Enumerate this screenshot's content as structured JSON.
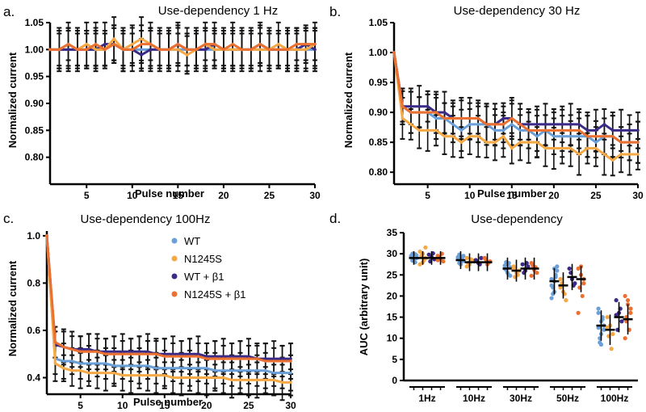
{
  "colors": {
    "WT": "#6a9fd8",
    "N1245S": "#f4a946",
    "WT_b1": "#3b2a86",
    "N1245S_b1": "#ea7131",
    "error": "#111111"
  },
  "legend": {
    "items": [
      {
        "label": "WT",
        "key": "WT"
      },
      {
        "label": "N1245S",
        "key": "N1245S"
      },
      {
        "label": "WT + β1",
        "key": "WT_b1"
      },
      {
        "label": "N1245S + β1",
        "key": "N1245S_b1"
      }
    ]
  },
  "chart_data": [
    {
      "id": "a",
      "type": "line",
      "panel_label": "a.",
      "title": "Use-dependency 1 Hz",
      "xlabel": "Pulse number",
      "ylabel": "Normalized current",
      "xlim": [
        1,
        30
      ],
      "ylim": [
        0.75,
        1.05
      ],
      "xticks": [
        5,
        10,
        15,
        20,
        25,
        30
      ],
      "yticks": [
        0.8,
        0.85,
        0.9,
        0.95,
        1.0,
        1.05
      ],
      "ytick_labels": [
        "0.80",
        "0.85",
        "0.90",
        "0.95",
        "1.00",
        "1.05"
      ],
      "error": 0.035,
      "series": [
        {
          "name": "WT",
          "key": "WT",
          "values": [
            1.0,
            1.0,
            1.0,
            1.0,
            1.0,
            1.0,
            1.0,
            1.01,
            1.0,
            1.0,
            1.0,
            1.0,
            1.0,
            1.0,
            1.0,
            1.0,
            1.0,
            1.0,
            1.0,
            1.0,
            1.0,
            1.0,
            1.0,
            1.0,
            1.0,
            1.0,
            1.0,
            1.0,
            1.0,
            1.0
          ]
        },
        {
          "name": "N1245S",
          "key": "N1245S",
          "values": [
            1.0,
            1.0,
            1.01,
            1.0,
            1.01,
            1.0,
            1.0,
            1.02,
            1.0,
            1.01,
            1.02,
            1.01,
            1.0,
            1.0,
            1.0,
            0.99,
            1.0,
            1.01,
            1.0,
            1.0,
            1.0,
            1.0,
            1.0,
            1.0,
            1.0,
            1.01,
            1.0,
            1.0,
            1.0,
            1.01
          ]
        },
        {
          "name": "WT + β1",
          "key": "WT_b1",
          "values": [
            1.0,
            1.0,
            1.0,
            1.0,
            1.0,
            1.0,
            1.01,
            1.01,
            1.0,
            1.0,
            0.99,
            1.0,
            1.0,
            1.0,
            1.01,
            1.0,
            1.0,
            1.0,
            1.01,
            1.0,
            1.0,
            1.0,
            1.0,
            1.01,
            1.0,
            1.0,
            1.0,
            1.0,
            1.01,
            1.0
          ]
        },
        {
          "name": "N1245S + β1",
          "key": "N1245S_b1",
          "values": [
            1.0,
            1.0,
            1.01,
            1.0,
            1.0,
            1.01,
            1.0,
            1.01,
            1.0,
            1.0,
            1.01,
            1.01,
            1.0,
            1.0,
            1.01,
            1.0,
            1.0,
            1.01,
            1.01,
            1.0,
            1.01,
            1.0,
            1.0,
            1.01,
            1.0,
            1.0,
            1.0,
            1.01,
            1.01,
            1.01
          ]
        }
      ]
    },
    {
      "id": "b",
      "type": "line",
      "panel_label": "b.",
      "title": "Use-dependency 30 Hz",
      "xlabel": "Pulse number",
      "ylabel": "Normalized current",
      "xlim": [
        1,
        30
      ],
      "ylim": [
        0.78,
        1.05
      ],
      "xticks": [
        5,
        10,
        15,
        20,
        25,
        30
      ],
      "yticks": [
        0.8,
        0.85,
        0.9,
        0.95,
        1.0,
        1.05
      ],
      "ytick_labels": [
        "0.80",
        "0.85",
        "0.90",
        "0.95",
        "1.00",
        "1.05"
      ],
      "error": 0.03,
      "series": [
        {
          "name": "WT",
          "key": "WT",
          "values": [
            1.0,
            0.91,
            0.9,
            0.9,
            0.9,
            0.89,
            0.89,
            0.88,
            0.87,
            0.88,
            0.88,
            0.88,
            0.87,
            0.87,
            0.88,
            0.87,
            0.87,
            0.86,
            0.87,
            0.86,
            0.86,
            0.86,
            0.86,
            0.86,
            0.85,
            0.86,
            0.86,
            0.85,
            0.85,
            0.85
          ]
        },
        {
          "name": "N1245S",
          "key": "N1245S",
          "values": [
            1.0,
            0.89,
            0.88,
            0.87,
            0.87,
            0.87,
            0.86,
            0.86,
            0.85,
            0.86,
            0.86,
            0.85,
            0.85,
            0.86,
            0.84,
            0.85,
            0.85,
            0.85,
            0.84,
            0.84,
            0.84,
            0.84,
            0.83,
            0.84,
            0.84,
            0.83,
            0.82,
            0.83,
            0.83,
            0.83
          ]
        },
        {
          "name": "WT + β1",
          "key": "WT_b1",
          "values": [
            1.0,
            0.91,
            0.91,
            0.91,
            0.91,
            0.9,
            0.9,
            0.89,
            0.89,
            0.89,
            0.89,
            0.88,
            0.88,
            0.89,
            0.89,
            0.88,
            0.88,
            0.88,
            0.88,
            0.88,
            0.88,
            0.88,
            0.88,
            0.87,
            0.87,
            0.88,
            0.87,
            0.87,
            0.87,
            0.87
          ]
        },
        {
          "name": "N1245S + β1",
          "key": "N1245S_b1",
          "values": [
            1.0,
            0.91,
            0.9,
            0.9,
            0.9,
            0.9,
            0.89,
            0.89,
            0.89,
            0.89,
            0.89,
            0.88,
            0.88,
            0.88,
            0.89,
            0.88,
            0.87,
            0.87,
            0.87,
            0.87,
            0.87,
            0.87,
            0.87,
            0.86,
            0.86,
            0.86,
            0.86,
            0.85,
            0.85,
            0.85
          ]
        }
      ]
    },
    {
      "id": "c",
      "type": "line",
      "panel_label": "c.",
      "title": "Use-dependency 100Hz",
      "xlabel": "Pulse number",
      "ylabel": "Normalized current",
      "xlim": [
        1,
        30
      ],
      "ylim": [
        0.33,
        1.02
      ],
      "xticks": [
        5,
        10,
        15,
        20,
        25,
        30
      ],
      "yticks": [
        0.4,
        0.6,
        0.8,
        1.0
      ],
      "ytick_labels": [
        "0.4",
        "0.6",
        "0.8",
        "1.0"
      ],
      "error": 0.065,
      "series": [
        {
          "name": "WT",
          "key": "WT",
          "values": [
            1.0,
            0.48,
            0.47,
            0.47,
            0.46,
            0.46,
            0.46,
            0.46,
            0.45,
            0.45,
            0.45,
            0.45,
            0.45,
            0.44,
            0.44,
            0.44,
            0.44,
            0.44,
            0.44,
            0.44,
            0.43,
            0.43,
            0.43,
            0.43,
            0.43,
            0.43,
            0.43,
            0.42,
            0.42,
            0.42
          ]
        },
        {
          "name": "N1245S",
          "key": "N1245S",
          "values": [
            1.0,
            0.46,
            0.44,
            0.43,
            0.43,
            0.42,
            0.42,
            0.42,
            0.42,
            0.41,
            0.41,
            0.41,
            0.41,
            0.41,
            0.41,
            0.4,
            0.4,
            0.4,
            0.4,
            0.4,
            0.4,
            0.4,
            0.39,
            0.39,
            0.39,
            0.39,
            0.39,
            0.39,
            0.38,
            0.38
          ]
        },
        {
          "name": "WT + β1",
          "key": "WT_b1",
          "values": [
            1.0,
            0.54,
            0.53,
            0.52,
            0.52,
            0.52,
            0.51,
            0.51,
            0.51,
            0.51,
            0.51,
            0.51,
            0.51,
            0.5,
            0.5,
            0.5,
            0.5,
            0.5,
            0.5,
            0.49,
            0.49,
            0.49,
            0.49,
            0.49,
            0.49,
            0.48,
            0.48,
            0.48,
            0.48,
            0.48
          ]
        },
        {
          "name": "N1245S + β1",
          "key": "N1245S_b1",
          "values": [
            1.0,
            0.55,
            0.53,
            0.52,
            0.51,
            0.51,
            0.51,
            0.5,
            0.5,
            0.5,
            0.5,
            0.5,
            0.5,
            0.5,
            0.49,
            0.49,
            0.49,
            0.49,
            0.49,
            0.48,
            0.48,
            0.48,
            0.48,
            0.48,
            0.48,
            0.48,
            0.47,
            0.47,
            0.47,
            0.47
          ]
        }
      ]
    },
    {
      "id": "d",
      "type": "scatter",
      "panel_label": "d.",
      "title": "Use-dependency",
      "xlabel": "",
      "ylabel": "AUC (arbitrary unit)",
      "ylim": [
        0,
        35
      ],
      "yticks": [
        0,
        5,
        10,
        15,
        20,
        25,
        30,
        35
      ],
      "ytick_labels": [
        "0",
        "5",
        "10",
        "15",
        "20",
        "25",
        "30",
        "35"
      ],
      "categories": [
        "1Hz",
        "10Hz",
        "30Hz",
        "50Hz",
        "100Hz"
      ],
      "series": [
        {
          "name": "WT",
          "key": "WT",
          "means": [
            29,
            28.5,
            26.5,
            23.5,
            13
          ],
          "points": [
            [
              29.5,
              28.5,
              29,
              30,
              28,
              29.2,
              28.8,
              29.6,
              28.4,
              29.9
            ],
            [
              28.7,
              28,
              29.5,
              27.8,
              28.9,
              29.2,
              27.5,
              28.3,
              29.8,
              28.6
            ],
            [
              27.2,
              25.5,
              26.8,
              28,
              25,
              26.5,
              27.5,
              24.8,
              26.2,
              27.8
            ],
            [
              24,
              21,
              26,
              22,
              25,
              19.5,
              23.5,
              27,
              20.5,
              24.5,
              22.5,
              26.5
            ],
            [
              16,
              14,
              12,
              10,
              15,
              17,
              11,
              13,
              9,
              14.5,
              12.5,
              8.5
            ]
          ]
        },
        {
          "name": "N1245S",
          "key": "N1245S",
          "means": [
            29,
            28,
            26,
            22.5,
            12
          ],
          "points": [
            [
              30.5,
              28,
              31.5,
              29.5,
              28.5,
              27.5,
              30,
              29
            ],
            [
              29,
              27.5,
              28.5,
              27.8,
              28.7,
              27
            ],
            [
              27,
              25.5,
              26,
              24.5,
              25,
              26.5
            ],
            [
              24,
              21,
              19,
              23,
              20.5,
              22
            ],
            [
              15,
              13,
              11,
              10.5,
              7.5,
              12.5
            ]
          ]
        },
        {
          "name": "WT + β1",
          "key": "WT_b1",
          "means": [
            29,
            28,
            26.5,
            24.5,
            15
          ],
          "points": [
            [
              29.8,
              29.2,
              28.7,
              28.2,
              30.1
            ],
            [
              28.5,
              27.8,
              29,
              28.2,
              27.5
            ],
            [
              27.5,
              26,
              27,
              25.5,
              27.8
            ],
            [
              26.5,
              24,
              23,
              25.5,
              22.5
            ],
            [
              19,
              16,
              14,
              12,
              17,
              15.5
            ]
          ]
        },
        {
          "name": "N1245S + β1",
          "key": "N1245S_b1",
          "means": [
            29,
            28,
            26.5,
            24,
            14.5
          ],
          "points": [
            [
              29.5,
              28.8,
              28.2,
              29.2,
              30,
              28.5
            ],
            [
              29,
              27.5,
              28.2,
              28.6,
              27.9
            ],
            [
              27.8,
              26.2,
              25.5,
              27.2,
              26.8,
              24.8
            ],
            [
              26.5,
              25,
              24,
              22,
              20,
              16,
              27,
              23
            ],
            [
              20,
              18,
              16,
              14,
              12,
              10,
              19,
              17,
              15
            ]
          ]
        }
      ]
    }
  ]
}
